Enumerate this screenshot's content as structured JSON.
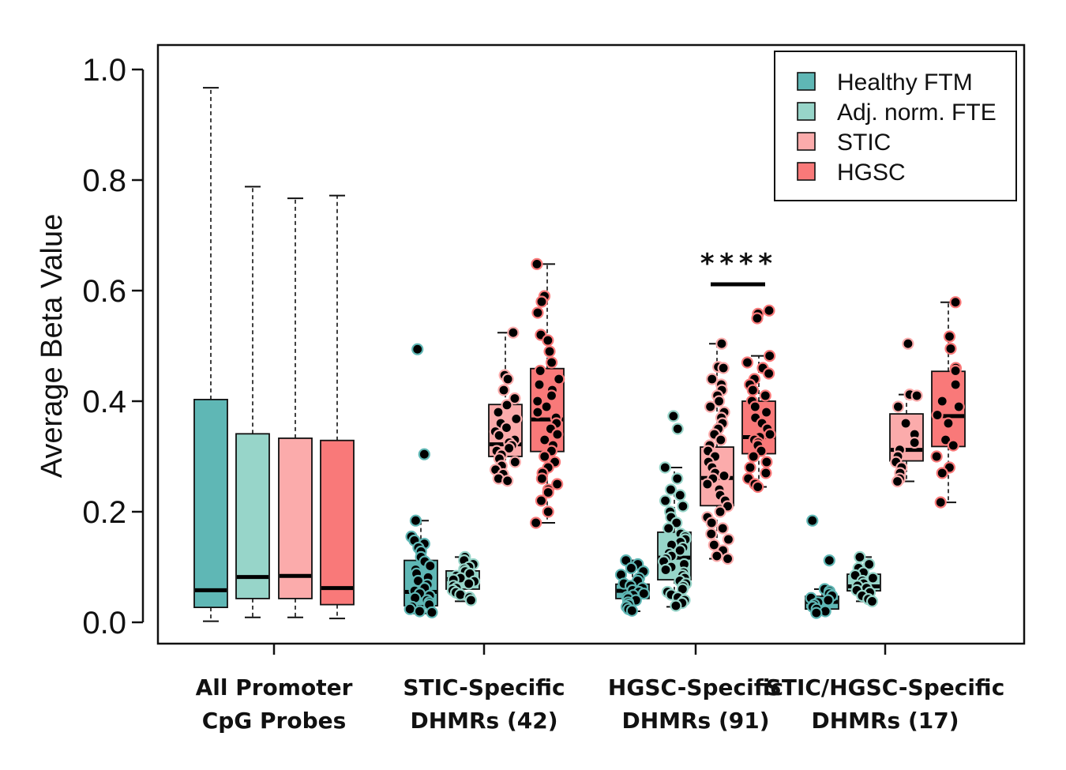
{
  "chart_data": {
    "type": "box",
    "ylabel": "Average Beta Value",
    "ylim": [
      0,
      1.0
    ],
    "yticks": [
      0.0,
      0.2,
      0.4,
      0.6,
      0.8,
      1.0
    ],
    "ytick_labels": [
      "0.0",
      "0.2",
      "0.4",
      "0.6",
      "0.8",
      "1.0"
    ],
    "legend": {
      "position": "top-right",
      "entries": [
        {
          "name": "Healthy FTM",
          "color": "#5fb7b5"
        },
        {
          "name": "Adj. norm. FTE",
          "color": "#97d5c9"
        },
        {
          "name": "STIC",
          "color": "#fbabab"
        },
        {
          "name": "HGSC",
          "color": "#f97979"
        }
      ]
    },
    "point_colors": {
      "fill": "#000000",
      "outline": {
        "Healthy FTM": "#5fb7b5",
        "Adj. norm. FTE": "#97d5c9",
        "STIC": "#fbabab",
        "HGSC": "#f97979"
      }
    },
    "groups": [
      {
        "label_line1": "All Promoter",
        "label_line2": "CpG Probes",
        "boxes": [
          {
            "series": "Healthy FTM",
            "min": 0.002,
            "q1": 0.027,
            "median": 0.058,
            "q3": 0.403,
            "max": 0.967,
            "points": []
          },
          {
            "series": "Adj. norm. FTE",
            "min": 0.009,
            "q1": 0.043,
            "median": 0.082,
            "q3": 0.341,
            "max": 0.788,
            "points": []
          },
          {
            "series": "STIC",
            "min": 0.009,
            "q1": 0.043,
            "median": 0.084,
            "q3": 0.333,
            "max": 0.767,
            "points": []
          },
          {
            "series": "HGSC",
            "min": 0.007,
            "q1": 0.032,
            "median": 0.062,
            "q3": 0.329,
            "max": 0.772,
            "points": []
          }
        ]
      },
      {
        "label_line1": "STIC-Specific",
        "label_line2": "DHMRs (42)",
        "boxes": [
          {
            "series": "Healthy FTM",
            "min": 0.016,
            "q1": 0.03,
            "median": 0.055,
            "q3": 0.112,
            "max": 0.184,
            "points": [
              0.494,
              0.304,
              0.184,
              0.155,
              0.148,
              0.142,
              0.135,
              0.128,
              0.118,
              0.11,
              0.102,
              0.095,
              0.088,
              0.081,
              0.075,
              0.068,
              0.062,
              0.057,
              0.052,
              0.048,
              0.044,
              0.04,
              0.036,
              0.032,
              0.028,
              0.024,
              0.02,
              0.018
            ]
          },
          {
            "series": "Adj. norm. FTE",
            "min": 0.038,
            "q1": 0.06,
            "median": 0.078,
            "q3": 0.093,
            "max": 0.118,
            "points": [
              0.118,
              0.112,
              0.105,
              0.1,
              0.096,
              0.092,
              0.088,
              0.084,
              0.08,
              0.077,
              0.074,
              0.07,
              0.066,
              0.062,
              0.058,
              0.054,
              0.05,
              0.045,
              0.04
            ]
          },
          {
            "series": "STIC",
            "min": 0.255,
            "q1": 0.3,
            "median": 0.322,
            "q3": 0.394,
            "max": 0.524,
            "points": [
              0.524,
              0.447,
              0.44,
              0.42,
              0.405,
              0.393,
              0.38,
              0.368,
              0.36,
              0.352,
              0.345,
              0.338,
              0.33,
              0.325,
              0.32,
              0.315,
              0.31,
              0.303,
              0.296,
              0.29,
              0.283,
              0.276,
              0.268,
              0.26,
              0.256
            ]
          },
          {
            "series": "HGSC",
            "min": 0.18,
            "q1": 0.309,
            "median": 0.367,
            "q3": 0.459,
            "max": 0.648,
            "points": [
              0.648,
              0.59,
              0.58,
              0.56,
              0.52,
              0.51,
              0.49,
              0.47,
              0.455,
              0.44,
              0.43,
              0.42,
              0.41,
              0.4,
              0.39,
              0.38,
              0.37,
              0.36,
              0.35,
              0.34,
              0.33,
              0.32,
              0.31,
              0.3,
              0.29,
              0.28,
              0.27,
              0.26,
              0.25,
              0.24,
              0.235,
              0.22,
              0.2,
              0.18
            ]
          }
        ]
      },
      {
        "label_line1": "HGSC-Specific",
        "label_line2": "DHMRs (91)",
        "significance": "****",
        "boxes": [
          {
            "series": "Healthy FTM",
            "min": 0.02,
            "q1": 0.043,
            "median": 0.057,
            "q3": 0.069,
            "max": 0.112,
            "points": [
              0.112,
              0.105,
              0.098,
              0.092,
              0.086,
              0.08,
              0.075,
              0.07,
              0.066,
              0.062,
              0.058,
              0.055,
              0.052,
              0.049,
              0.046,
              0.043,
              0.04,
              0.036,
              0.032,
              0.028,
              0.024,
              0.021
            ]
          },
          {
            "series": "Adj. norm. FTE",
            "min": 0.028,
            "q1": 0.077,
            "median": 0.117,
            "q3": 0.163,
            "max": 0.28,
            "points": [
              0.373,
              0.35,
              0.28,
              0.26,
              0.24,
              0.23,
              0.22,
              0.21,
              0.2,
              0.19,
              0.18,
              0.17,
              0.16,
              0.155,
              0.15,
              0.145,
              0.14,
              0.135,
              0.13,
              0.125,
              0.12,
              0.115,
              0.11,
              0.105,
              0.1,
              0.095,
              0.09,
              0.085,
              0.08,
              0.075,
              0.07,
              0.065,
              0.06,
              0.055,
              0.05,
              0.045,
              0.04,
              0.035,
              0.03
            ]
          },
          {
            "series": "STIC",
            "min": 0.115,
            "q1": 0.211,
            "median": 0.261,
            "q3": 0.317,
            "max": 0.504,
            "points": [
              0.504,
              0.462,
              0.46,
              0.44,
              0.43,
              0.42,
              0.41,
              0.4,
              0.39,
              0.38,
              0.37,
              0.36,
              0.35,
              0.34,
              0.33,
              0.32,
              0.31,
              0.3,
              0.29,
              0.28,
              0.27,
              0.265,
              0.26,
              0.25,
              0.24,
              0.23,
              0.22,
              0.21,
              0.2,
              0.19,
              0.18,
              0.17,
              0.16,
              0.15,
              0.14,
              0.13,
              0.12,
              0.115
            ]
          },
          {
            "series": "HGSC",
            "min": 0.245,
            "q1": 0.305,
            "median": 0.335,
            "q3": 0.4,
            "max": 0.482,
            "points": [
              0.564,
              0.558,
              0.55,
              0.482,
              0.47,
              0.46,
              0.45,
              0.44,
              0.43,
              0.42,
              0.41,
              0.4,
              0.39,
              0.38,
              0.37,
              0.36,
              0.35,
              0.34,
              0.335,
              0.33,
              0.325,
              0.32,
              0.31,
              0.3,
              0.29,
              0.28,
              0.27,
              0.26,
              0.25,
              0.245
            ]
          }
        ]
      },
      {
        "label_line1": "STIC/HGSC-Specific",
        "label_line2": "DHMRs (17)",
        "boxes": [
          {
            "series": "Healthy FTM",
            "min": 0.016,
            "q1": 0.024,
            "median": 0.037,
            "q3": 0.047,
            "max": 0.06,
            "points": [
              0.184,
              0.112,
              0.06,
              0.056,
              0.052,
              0.048,
              0.044,
              0.04,
              0.036,
              0.032,
              0.028,
              0.024,
              0.02,
              0.017
            ]
          },
          {
            "series": "Adj. norm. FTE",
            "min": 0.038,
            "q1": 0.057,
            "median": 0.065,
            "q3": 0.087,
            "max": 0.118,
            "points": [
              0.118,
              0.105,
              0.098,
              0.09,
              0.085,
              0.08,
              0.075,
              0.07,
              0.066,
              0.062,
              0.058,
              0.054,
              0.048,
              0.042,
              0.038
            ]
          },
          {
            "series": "STIC",
            "min": 0.255,
            "q1": 0.292,
            "median": 0.312,
            "q3": 0.377,
            "max": 0.412,
            "points": [
              0.504,
              0.412,
              0.41,
              0.39,
              0.36,
              0.34,
              0.325,
              0.312,
              0.3,
              0.29,
              0.28,
              0.27,
              0.26,
              0.255
            ]
          },
          {
            "series": "HGSC",
            "min": 0.217,
            "q1": 0.318,
            "median": 0.373,
            "q3": 0.454,
            "max": 0.579,
            "points": [
              0.579,
              0.517,
              0.495,
              0.46,
              0.455,
              0.43,
              0.4,
              0.39,
              0.375,
              0.36,
              0.33,
              0.32,
              0.3,
              0.28,
              0.27,
              0.217
            ]
          }
        ]
      }
    ]
  }
}
